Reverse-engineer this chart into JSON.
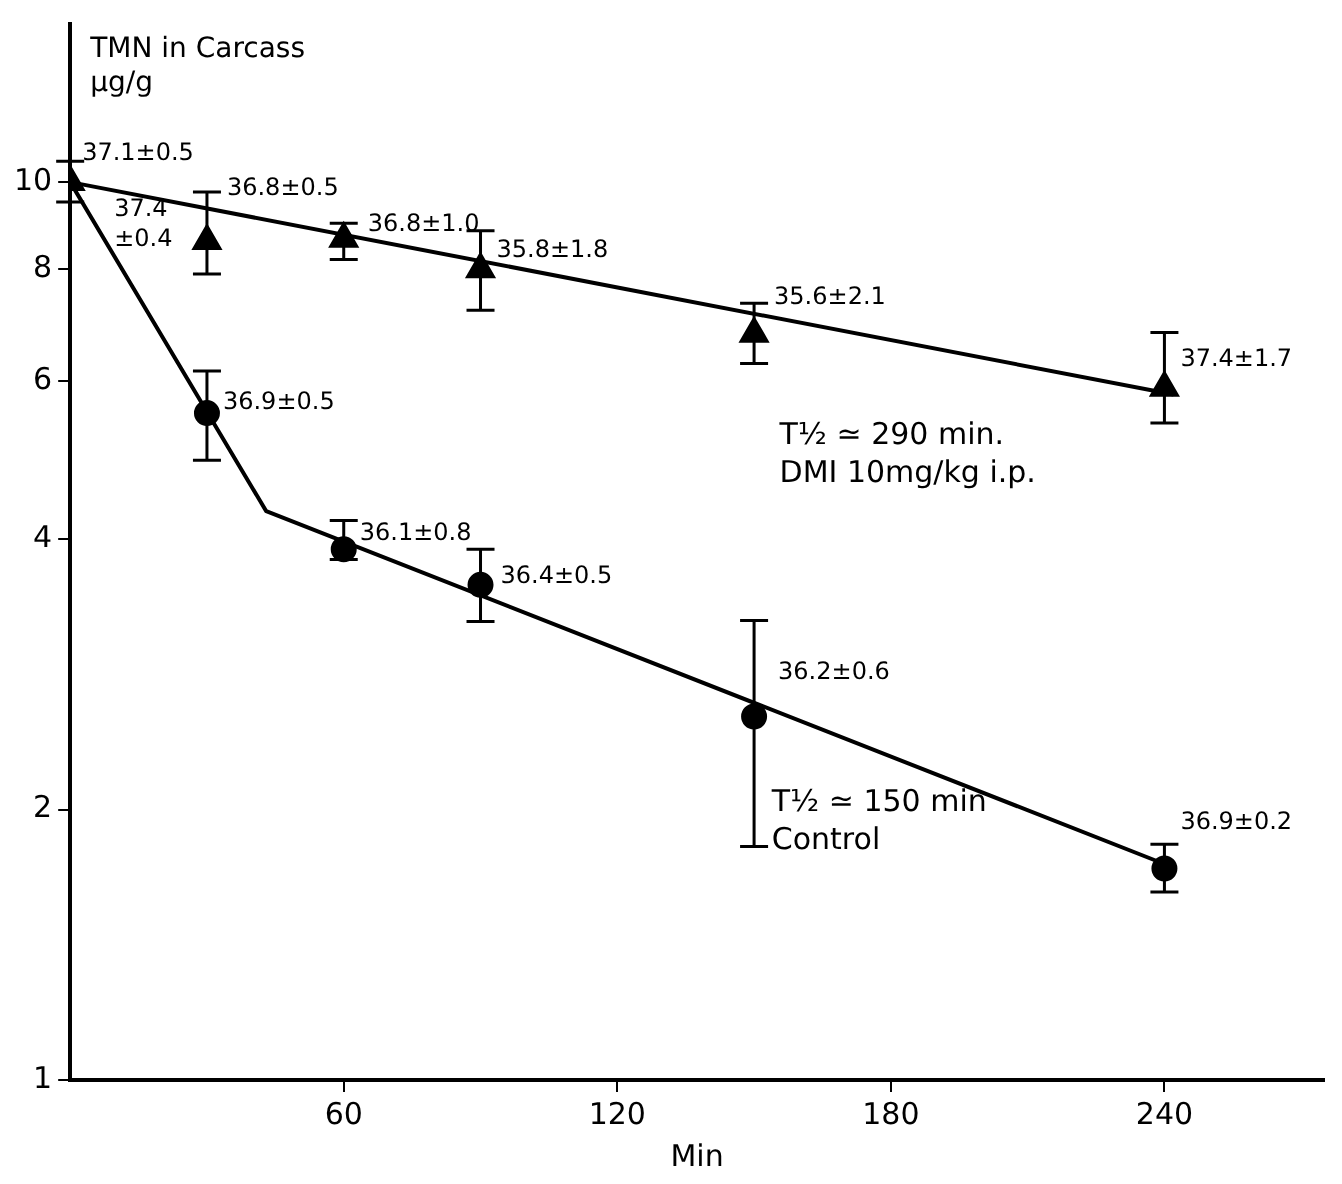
{
  "chart_data": {
    "type": "scatter",
    "xlabel": "Min",
    "ylabel": "TMN in Carcass\nμg/g",
    "log": "y",
    "grid": false,
    "legend": false,
    "xlim": [
      0,
      275
    ],
    "xticks": [
      60,
      120,
      180,
      240
    ],
    "ylim": [
      1,
      15
    ],
    "yticks": [
      1,
      2,
      4,
      6,
      8,
      10
    ],
    "series": [
      {
        "color": "#000000",
        "marker": "triangle",
        "x": [
          0,
          30,
          60,
          90,
          150,
          240
        ],
        "values": [
          10,
          8.6,
          8.65,
          8.0,
          6.78,
          5.9
        ],
        "errors": [
          [
            9.5,
            10.55
          ],
          [
            7.9,
            9.75
          ],
          [
            8.2,
            9.0
          ],
          [
            7.2,
            8.83
          ],
          [
            6.28,
            7.33
          ],
          [
            5.39,
            6.8
          ]
        ]
      },
      {
        "color": "#000000",
        "marker": "circle",
        "x": [
          30,
          60,
          90,
          150,
          240
        ],
        "values": [
          5.53,
          3.9,
          3.56,
          2.54,
          1.72
        ],
        "errors": [
          [
            4.9,
            6.16
          ],
          [
            3.8,
            4.2
          ],
          [
            3.24,
            3.9
          ],
          [
            1.82,
            3.25
          ],
          [
            1.62,
            1.83
          ]
        ]
      },
      {
        "type": "line",
        "color": "#000000",
        "marker": "none",
        "line_style": "solid",
        "x": [
          0,
          242
        ],
        "values": [
          10,
          5.8
        ]
      },
      {
        "type": "line",
        "color": "#000000",
        "marker": "none",
        "line_style": "solid",
        "x": [
          0,
          43,
          240
        ],
        "values": [
          10,
          4.3,
          1.74
        ]
      }
    ],
    "annotations": [
      {
        "text": "37.1±0.5",
        "x": 0,
        "y": 10
      },
      {
        "text": "37.4\n±0.4",
        "x": 0,
        "y": 10
      },
      {
        "text": "36.8±0.5",
        "x": 30,
        "y": 8.6
      },
      {
        "text": "36.8±1.0",
        "x": 60,
        "y": 8.65
      },
      {
        "text": "35.8±1.8",
        "x": 90,
        "y": 8.0
      },
      {
        "text": "35.6±2.1",
        "x": 150,
        "y": 6.78
      },
      {
        "text": "37.4±1.7",
        "x": 240,
        "y": 5.9
      },
      {
        "text": "36.9±0.5",
        "x": 30,
        "y": 5.53
      },
      {
        "text": "36.1±0.8",
        "x": 60,
        "y": 3.9
      },
      {
        "text": "36.4±0.5",
        "x": 90,
        "y": 3.56
      },
      {
        "text": "36.2±0.6",
        "x": 150,
        "y": 2.54
      },
      {
        "text": "36.9±0.2",
        "x": 240,
        "y": 1.72
      },
      "T½ ≃ 290 min.\nDMI 10mg/kg i.p.",
      "T½ ≃ 150 min\nControl"
    ]
  }
}
